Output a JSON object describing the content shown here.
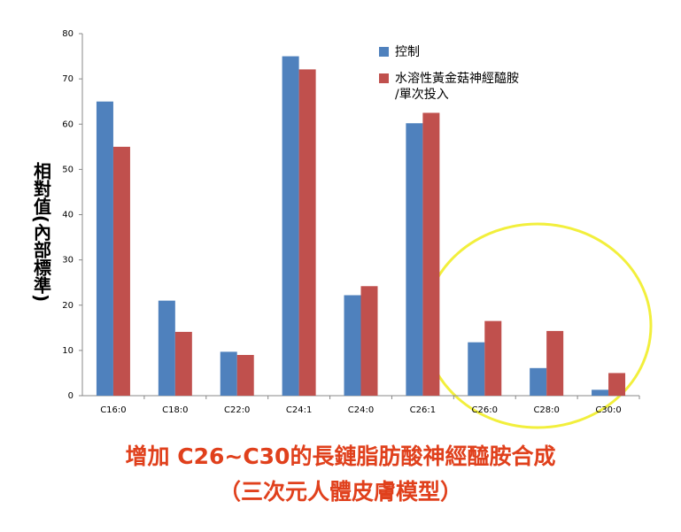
{
  "chart_data": {
    "type": "bar",
    "ylabel": "相對值(內部標準)",
    "categories": [
      "C16:0",
      "C18:0",
      "C22:0",
      "C24:1",
      "C24:0",
      "C26:1",
      "C26:0",
      "C28:0",
      "C30:0"
    ],
    "series": [
      {
        "name": "控制",
        "color": "#4f81bd",
        "values": [
          65,
          21,
          9.7,
          75,
          22.2,
          60.2,
          11.8,
          6.1,
          1.3
        ]
      },
      {
        "name": "水溶性黃金菇神經醯胺\n/單次投入",
        "color": "#c0504d",
        "values": [
          55,
          14.1,
          9,
          72.1,
          24.2,
          62.5,
          16.5,
          14.3,
          5
        ]
      }
    ],
    "ylim": [
      0,
      80
    ],
    "yticks": [
      0,
      10,
      20,
      30,
      40,
      50,
      60,
      70,
      80
    ],
    "grid": false,
    "legend": "top-right",
    "caption": [
      "增加 C26~C30的長鏈脂肪酸神經醯胺合成",
      "（三次元人體皮膚模型）"
    ]
  }
}
